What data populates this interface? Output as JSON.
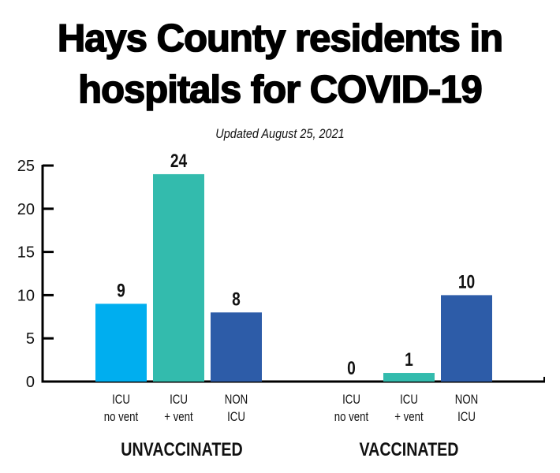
{
  "title_lines": [
    "Hays County residents in",
    "hospitals for COVID-19"
  ],
  "subtitle": "Updated August 25, 2021",
  "chart_data": {
    "type": "bar",
    "ylim": [
      0,
      25
    ],
    "yticks": [
      0,
      5,
      10,
      15,
      20,
      25
    ],
    "grid": false,
    "groups": [
      {
        "name": "UNVACCINATED",
        "bars": [
          {
            "label": [
              "ICU",
              "no vent"
            ],
            "value": 9,
            "color": "#00aeef"
          },
          {
            "label": [
              "ICU",
              "+ vent"
            ],
            "value": 24,
            "color": "#33bbad"
          },
          {
            "label": [
              "NON",
              "ICU"
            ],
            "value": 8,
            "color": "#2d5ca8"
          }
        ]
      },
      {
        "name": "VACCINATED",
        "bars": [
          {
            "label": [
              "ICU",
              "no vent"
            ],
            "value": 0,
            "color": "#00aeef"
          },
          {
            "label": [
              "ICU",
              "+ vent"
            ],
            "value": 1,
            "color": "#33bbad"
          },
          {
            "label": [
              "NON",
              "ICU"
            ],
            "value": 10,
            "color": "#2d5ca8"
          }
        ]
      }
    ]
  }
}
